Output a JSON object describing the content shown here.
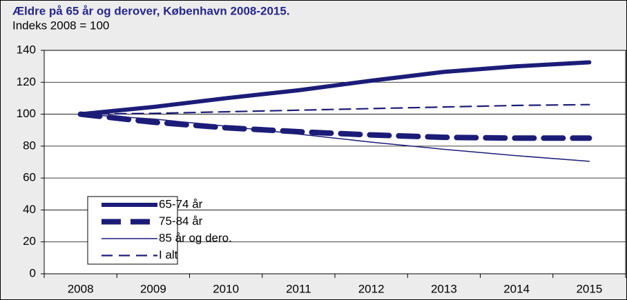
{
  "chart_data": {
    "type": "line",
    "title": "Ældre på 65 år og derover, København 2008-2015.",
    "subtitle": "Indeks 2008 = 100",
    "categories": [
      "2008",
      "2009",
      "2010",
      "2011",
      "2012",
      "2013",
      "2014",
      "2015"
    ],
    "series": [
      {
        "name": "65-74 år",
        "color": "#1c1c78",
        "dashed": false,
        "values": [
          100,
          104.5,
          110,
          115,
          121,
          126.5,
          130,
          132.5
        ]
      },
      {
        "name": "75-84 år",
        "color": "#1c1c78",
        "dashed": true,
        "values": [
          100,
          95,
          91.5,
          89,
          87,
          85.5,
          85,
          85
        ]
      },
      {
        "name": "85 år og dero.",
        "color": "#1c1c78",
        "dashed": false,
        "values": [
          100,
          97,
          92.5,
          87.5,
          82.5,
          78,
          74,
          70.5
        ]
      },
      {
        "name": "I alt",
        "color": "#1c1c78",
        "dashed": true,
        "values": [
          100,
          100.5,
          101.5,
          102.5,
          103.5,
          104.5,
          105.5,
          106
        ]
      }
    ],
    "ylim": [
      0,
      140
    ],
    "yticks": [
      0,
      20,
      40,
      60,
      80,
      100,
      120,
      140
    ],
    "grid": true,
    "legend": "lower left"
  }
}
